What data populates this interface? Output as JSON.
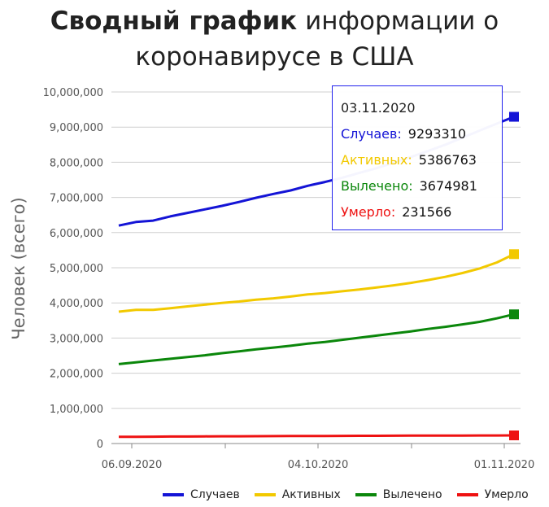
{
  "title": {
    "bold": "Сводный график",
    "line1_rest": "информации о",
    "line2": "коронавирусе в США"
  },
  "tooltip": {
    "date": "03.11.2020",
    "rows": [
      {
        "label": "Случаев:",
        "value": "9293310",
        "color": "#1414d6"
      },
      {
        "label": "Активных:",
        "value": "5386763",
        "color": "#f2c900"
      },
      {
        "label": "Вылечено:",
        "value": "3674981",
        "color": "#0b870b"
      },
      {
        "label": "Умерло:",
        "value": "231566",
        "color": "#ee1111"
      }
    ]
  },
  "chart_data": {
    "type": "line",
    "title": "Сводный график информации о коронавирусе в США",
    "xlabel": "",
    "ylabel": "Человек (всего)",
    "ylim": [
      0,
      10000000
    ],
    "y_ticks": [
      0,
      1000000,
      2000000,
      3000000,
      4000000,
      5000000,
      6000000,
      7000000,
      8000000,
      9000000,
      10000000
    ],
    "y_tick_labels": [
      "0",
      "1,000,000",
      "2,000,000",
      "3,000,000",
      "4,000,000",
      "5,000,000",
      "6,000,000",
      "7,000,000",
      "8,000,000",
      "9,000,000",
      "10,000,000"
    ],
    "x_tick_labels": [
      "06.09.2020",
      "04.10.2020",
      "01.11.2020"
    ],
    "x_start": "06.09.2020",
    "x_end": "03.11.2020",
    "grid": true,
    "legend_position": "bottom-right",
    "series": [
      {
        "name": "Случаев",
        "color": "#1414d6",
        "values": [
          6200000,
          6300000,
          6340000,
          6460000,
          6560000,
          6660000,
          6760000,
          6870000,
          6990000,
          7100000,
          7200000,
          7330000,
          7440000,
          7560000,
          7700000,
          7830000,
          7990000,
          8150000,
          8320000,
          8500000,
          8700000,
          8900000,
          9100000,
          9293310
        ]
      },
      {
        "name": "Активных",
        "color": "#f2c900",
        "values": [
          3750000,
          3800000,
          3800000,
          3850000,
          3900000,
          3950000,
          4000000,
          4040000,
          4090000,
          4130000,
          4180000,
          4240000,
          4280000,
          4330000,
          4380000,
          4440000,
          4500000,
          4570000,
          4650000,
          4740000,
          4850000,
          4980000,
          5150000,
          5386763
        ]
      },
      {
        "name": "Вылечено",
        "color": "#0b870b",
        "values": [
          2260000,
          2310000,
          2360000,
          2410000,
          2460000,
          2510000,
          2570000,
          2620000,
          2680000,
          2730000,
          2780000,
          2840000,
          2890000,
          2950000,
          3010000,
          3070000,
          3130000,
          3190000,
          3260000,
          3320000,
          3390000,
          3460000,
          3560000,
          3674981
        ]
      },
      {
        "name": "Умерло",
        "color": "#ee1111",
        "values": [
          189000,
          192000,
          195000,
          198000,
          200000,
          203000,
          205000,
          207000,
          209000,
          211000,
          213000,
          215000,
          216000,
          218000,
          219000,
          221000,
          222000,
          224000,
          225000,
          226000,
          227000,
          229000,
          230000,
          231566
        ]
      }
    ]
  }
}
